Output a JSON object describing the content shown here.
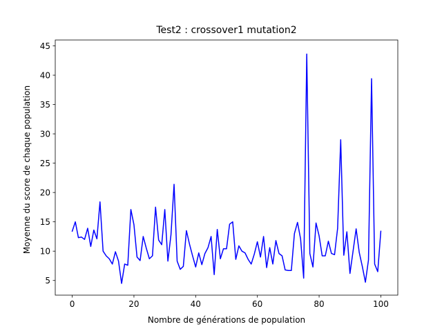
{
  "chart_data": {
    "type": "line",
    "title": "Test2 : crossover1 mutation2",
    "xlabel": "Nombre de générations de population",
    "ylabel": "Moyenne du score de chaque population",
    "xlim": [
      -5.5,
      105.5
    ],
    "ylim": [
      2.5,
      46.0
    ],
    "x_ticks": [
      0,
      20,
      40,
      60,
      80,
      100
    ],
    "y_ticks": [
      5,
      10,
      15,
      20,
      25,
      30,
      35,
      40,
      45
    ],
    "grid": false,
    "series": [
      {
        "color": "#0000ff",
        "x": [
          0,
          1,
          2,
          3,
          4,
          5,
          6,
          7,
          8,
          9,
          10,
          11,
          12,
          13,
          14,
          15,
          16,
          17,
          18,
          19,
          20,
          21,
          22,
          23,
          24,
          25,
          26,
          27,
          28,
          29,
          30,
          31,
          32,
          33,
          34,
          35,
          36,
          37,
          38,
          39,
          40,
          41,
          42,
          43,
          44,
          45,
          46,
          47,
          48,
          49,
          50,
          51,
          52,
          53,
          54,
          55,
          56,
          57,
          58,
          59,
          60,
          61,
          62,
          63,
          64,
          65,
          66,
          67,
          68,
          69,
          70,
          71,
          72,
          73,
          74,
          75,
          76,
          77,
          78,
          79,
          80,
          81,
          82,
          83,
          84,
          85,
          86,
          87,
          88,
          89,
          90,
          91,
          92,
          93,
          94,
          95,
          96,
          97,
          98,
          99,
          100
        ],
        "values": [
          13.4,
          15.0,
          12.3,
          12.4,
          12.0,
          13.9,
          10.8,
          13.6,
          12.1,
          18.4,
          10.0,
          9.2,
          8.7,
          7.8,
          9.9,
          8.3,
          4.5,
          7.8,
          7.6,
          17.1,
          14.5,
          9.0,
          8.4,
          12.5,
          10.5,
          8.7,
          9.2,
          17.5,
          11.9,
          11.1,
          17.1,
          8.3,
          12.8,
          21.4,
          8.3,
          6.9,
          7.4,
          13.5,
          11.2,
          9.2,
          7.3,
          9.7,
          7.7,
          9.6,
          10.6,
          12.5,
          6.0,
          13.7,
          8.7,
          10.4,
          10.4,
          14.6,
          15.0,
          8.6,
          10.9,
          10.0,
          9.7,
          8.6,
          7.8,
          9.5,
          11.6,
          9.0,
          12.5,
          7.2,
          10.6,
          7.8,
          11.8,
          9.6,
          9.2,
          6.8,
          6.7,
          6.7,
          13.0,
          14.9,
          12.1,
          5.4,
          43.6,
          9.6,
          7.3,
          14.8,
          12.6,
          9.2,
          9.2,
          11.7,
          9.6,
          9.4,
          13.9,
          29.0,
          9.3,
          13.3,
          6.2,
          10.0,
          13.8,
          9.8,
          7.4,
          4.7,
          8.5,
          39.4,
          7.8,
          6.5,
          13.4
        ]
      }
    ]
  }
}
